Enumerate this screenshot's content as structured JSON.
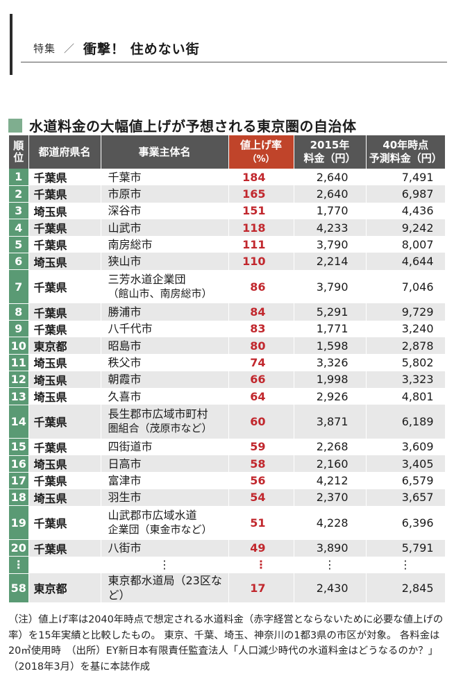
{
  "header": {
    "section": "特集",
    "separator": "／",
    "title": "衝撃！ 住めない街"
  },
  "table_title": "水道料金の大幅値上げが予想される東京圏の自治体",
  "columns": {
    "rank": "順位",
    "prefecture": "都道府県名",
    "entity": "事業主体名",
    "rate": "値上げ率",
    "rate_unit": "（%）",
    "fee2015": "2015年",
    "fee2015_unit": "料金（円）",
    "fee2040": "40年時点",
    "fee2040_unit": "予測料金（円）"
  },
  "rows": [
    {
      "rank": "1",
      "pref": "千葉県",
      "ent1": "千葉市",
      "ent2": "",
      "rate": "184",
      "fee2015": "2,640",
      "fee2040": "7,491"
    },
    {
      "rank": "2",
      "pref": "千葉県",
      "ent1": "市原市",
      "ent2": "",
      "rate": "165",
      "fee2015": "2,640",
      "fee2040": "6,987"
    },
    {
      "rank": "3",
      "pref": "埼玉県",
      "ent1": "深谷市",
      "ent2": "",
      "rate": "151",
      "fee2015": "1,770",
      "fee2040": "4,436"
    },
    {
      "rank": "4",
      "pref": "千葉県",
      "ent1": "山武市",
      "ent2": "",
      "rate": "118",
      "fee2015": "4,233",
      "fee2040": "9,242"
    },
    {
      "rank": "5",
      "pref": "千葉県",
      "ent1": "南房総市",
      "ent2": "",
      "rate": "111",
      "fee2015": "3,790",
      "fee2040": "8,007"
    },
    {
      "rank": "6",
      "pref": "埼玉県",
      "ent1": "狭山市",
      "ent2": "",
      "rate": "110",
      "fee2015": "2,214",
      "fee2040": "4,644"
    },
    {
      "rank": "7",
      "pref": "千葉県",
      "ent1": "三芳水道企業団",
      "ent2": "（館山市、南房総市）",
      "rate": "86",
      "fee2015": "3,790",
      "fee2040": "7,046"
    },
    {
      "rank": "8",
      "pref": "千葉県",
      "ent1": "勝浦市",
      "ent2": "",
      "rate": "84",
      "fee2015": "5,291",
      "fee2040": "9,729"
    },
    {
      "rank": "9",
      "pref": "千葉県",
      "ent1": "八千代市",
      "ent2": "",
      "rate": "83",
      "fee2015": "1,771",
      "fee2040": "3,240"
    },
    {
      "rank": "10",
      "pref": "東京都",
      "ent1": "昭島市",
      "ent2": "",
      "rate": "80",
      "fee2015": "1,598",
      "fee2040": "2,878"
    },
    {
      "rank": "11",
      "pref": "埼玉県",
      "ent1": "秩父市",
      "ent2": "",
      "rate": "74",
      "fee2015": "3,326",
      "fee2040": "5,802"
    },
    {
      "rank": "12",
      "pref": "埼玉県",
      "ent1": "朝霞市",
      "ent2": "",
      "rate": "66",
      "fee2015": "1,998",
      "fee2040": "3,323"
    },
    {
      "rank": "13",
      "pref": "埼玉県",
      "ent1": "久喜市",
      "ent2": "",
      "rate": "64",
      "fee2015": "2,926",
      "fee2040": "4,801"
    },
    {
      "rank": "14",
      "pref": "千葉県",
      "ent1": "長生郡市広域市町村",
      "ent2": "圏組合（茂原市など）",
      "rate": "60",
      "fee2015": "3,871",
      "fee2040": "6,189"
    },
    {
      "rank": "15",
      "pref": "千葉県",
      "ent1": "四街道市",
      "ent2": "",
      "rate": "59",
      "fee2015": "2,268",
      "fee2040": "3,609"
    },
    {
      "rank": "16",
      "pref": "埼玉県",
      "ent1": "日高市",
      "ent2": "",
      "rate": "58",
      "fee2015": "2,160",
      "fee2040": "3,405"
    },
    {
      "rank": "17",
      "pref": "千葉県",
      "ent1": "富津市",
      "ent2": "",
      "rate": "56",
      "fee2015": "4,212",
      "fee2040": "6,579"
    },
    {
      "rank": "18",
      "pref": "埼玉県",
      "ent1": "羽生市",
      "ent2": "",
      "rate": "54",
      "fee2015": "2,370",
      "fee2040": "3,657"
    },
    {
      "rank": "19",
      "pref": "千葉県",
      "ent1": "山武郡市広域水道",
      "ent2": "企業団（東金市など）",
      "rate": "51",
      "fee2015": "4,228",
      "fee2040": "6,396"
    },
    {
      "rank": "20",
      "pref": "千葉県",
      "ent1": "八街市",
      "ent2": "",
      "rate": "49",
      "fee2015": "3,890",
      "fee2040": "5,791"
    },
    {
      "rank": "⋮",
      "pref": "",
      "ent1": "⋮",
      "ent2": "",
      "rate": "⋮",
      "fee2015": "⋮",
      "fee2040": "⋮"
    },
    {
      "rank": "58",
      "pref": "東京都",
      "ent1": "東京都水道局（23区など）",
      "ent2": "",
      "rate": "17",
      "fee2015": "2,430",
      "fee2040": "2,845"
    }
  ],
  "note": "（注）値上げ率は2040年時点で想定される水道料金（赤字経営とならないために必要な値上げの率）を15年実績と比較したもの。 東京、千葉、埼玉、神奈川の1都3県の市区が対象。 各料金は20㎥使用時　（出所）EY新日本有限責任監査法人「人口減少時代の水道料金はどうなるのか？」（2018年3月）を基に本誌作成"
}
